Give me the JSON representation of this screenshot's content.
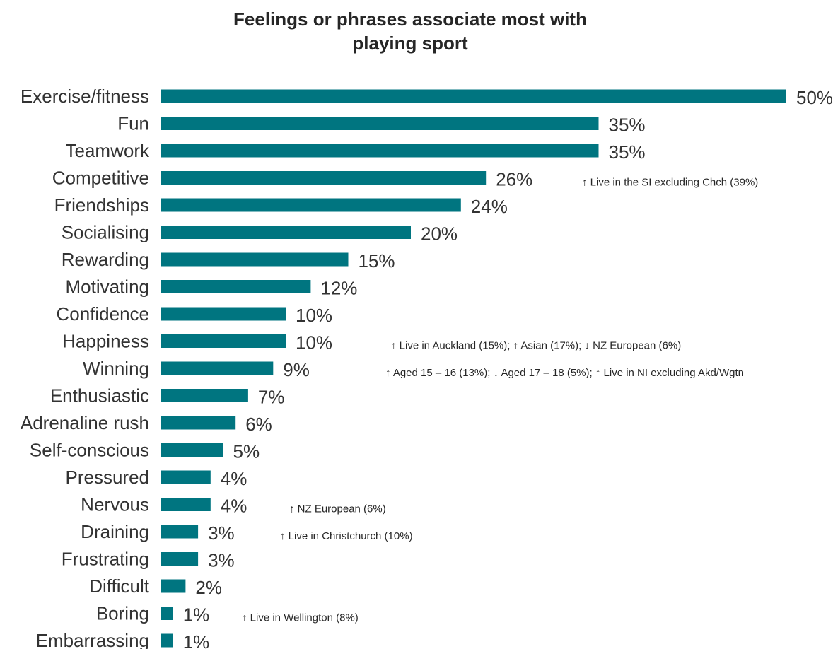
{
  "chart_data": {
    "type": "bar",
    "orientation": "horizontal",
    "title_lines": [
      "Feelings or phrases associate most with",
      "playing sport"
    ],
    "categories": [
      "Exercise/fitness",
      "Fun",
      "Teamwork",
      "Competitive",
      "Friendships",
      "Socialising",
      "Rewarding",
      "Motivating",
      "Confidence",
      "Happiness",
      "Winning",
      "Enthusiastic",
      "Adrenaline rush",
      "Self-conscious",
      "Pressured",
      "Nervous",
      "Draining",
      "Frustrating",
      "Difficult",
      "Boring",
      "Embarrassing"
    ],
    "values": [
      50,
      35,
      35,
      26,
      24,
      20,
      15,
      12,
      10,
      10,
      9,
      7,
      6,
      5,
      4,
      4,
      3,
      3,
      2,
      1,
      1
    ],
    "value_labels": [
      "50%",
      "35%",
      "35%",
      "26%",
      "24%",
      "20%",
      "15%",
      "12%",
      "10%",
      "10%",
      "9%",
      "7%",
      "6%",
      "5%",
      "4%",
      "4%",
      "3%",
      "3%",
      "2%",
      "1%",
      "1%"
    ],
    "bar_color": "#007580",
    "annotations": [
      {
        "category": "Competitive",
        "text": "↑ Live in the SI excluding Chch (39%)"
      },
      {
        "category": "Happiness",
        "text": "↑ Live in Auckland (15%); ↑ Asian (17%); ↓ NZ European (6%)"
      },
      {
        "category": "Winning",
        "text": "↑ Aged 15 – 16 (13%); ↓ Aged 17 – 18 (5%); ↑ Live in NI excluding Akd/Wgtn"
      },
      {
        "category": "Nervous",
        "text": "↑ NZ European (6%)"
      },
      {
        "category": "Draining",
        "text": "↑ Live in Christchurch (10%)"
      },
      {
        "category": "Boring",
        "text": "↑ Live in Wellington (8%)"
      }
    ]
  }
}
